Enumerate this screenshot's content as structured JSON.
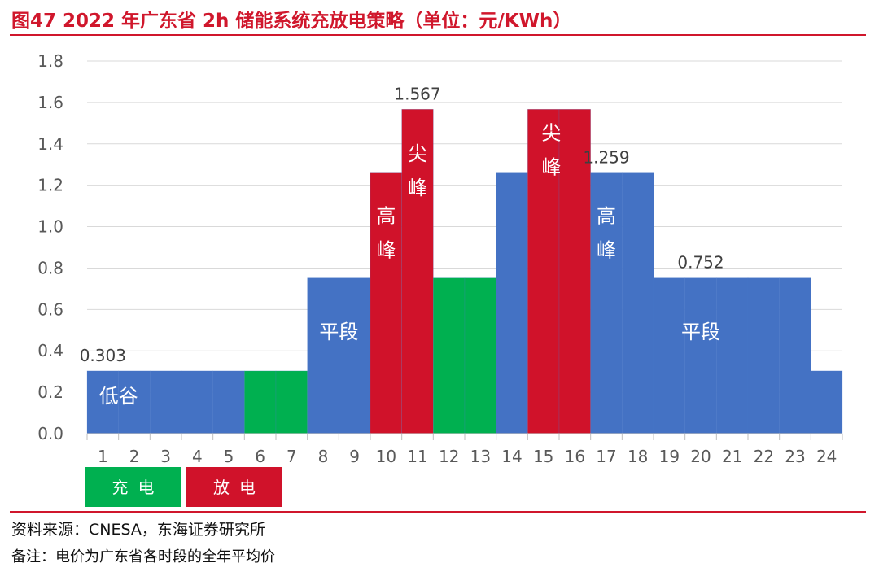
{
  "header": {
    "title": "图47  2022 年广东省 2h 储能系统充放电策略（单位：元/KWh）"
  },
  "footer": {
    "source": "资料来源：CNESA，东海证券研究所",
    "note": "备注：电价为广东省各时段的全年平均价"
  },
  "colors": {
    "brand_red": "#d0172c",
    "base": "#4472c4",
    "charge": "#00b050",
    "discharge": "#d0122a"
  },
  "chart_data": {
    "type": "bar",
    "title": "",
    "xlabel": "",
    "ylabel": "",
    "ylim": [
      0,
      1.8
    ],
    "y_ticks": [
      "0.0",
      "0.2",
      "0.4",
      "0.6",
      "0.8",
      "1.0",
      "1.2",
      "1.4",
      "1.6",
      "1.8"
    ],
    "categories": [
      "1",
      "2",
      "3",
      "4",
      "5",
      "6",
      "7",
      "8",
      "9",
      "10",
      "11",
      "12",
      "13",
      "14",
      "15",
      "16",
      "17",
      "18",
      "19",
      "20",
      "21",
      "22",
      "23",
      "24"
    ],
    "values": [
      0.303,
      0.303,
      0.303,
      0.303,
      0.303,
      0.303,
      0.303,
      0.752,
      0.752,
      1.259,
      1.567,
      0.752,
      0.752,
      1.259,
      1.567,
      1.567,
      1.259,
      1.259,
      0.752,
      0.752,
      0.752,
      0.752,
      0.752,
      0.303
    ],
    "status": [
      "base",
      "base",
      "base",
      "base",
      "base",
      "charge",
      "charge",
      "base",
      "base",
      "discharge",
      "discharge",
      "charge",
      "charge",
      "base",
      "discharge",
      "discharge",
      "base",
      "base",
      "base",
      "base",
      "base",
      "base",
      "base",
      "base"
    ],
    "grid": true,
    "data_labels": [
      {
        "text": "0.303",
        "hour": 1,
        "value": 0.303
      },
      {
        "text": "1.567",
        "hour": 11,
        "value": 1.567
      },
      {
        "text": "1.259",
        "hour": 17,
        "value": 1.259
      },
      {
        "text": "0.752",
        "hour": 20,
        "value": 0.752
      }
    ],
    "period_labels": [
      {
        "text": "低谷",
        "hour_from": 1,
        "hour_to": 2,
        "value": 0.15,
        "vertical": false
      },
      {
        "text": "平段",
        "hour_from": 8,
        "hour_to": 9,
        "value": 0.46,
        "vertical": false
      },
      {
        "text": "高峰",
        "hour_from": 10,
        "hour_to": 10,
        "value": 1.02,
        "vertical": true
      },
      {
        "text": "尖峰",
        "hour_from": 11,
        "hour_to": 11,
        "value": 1.32,
        "vertical": true
      },
      {
        "text": "尖峰",
        "hour_from": 15,
        "hour_to": 15.5,
        "value": 1.42,
        "vertical": true
      },
      {
        "text": "高峰",
        "hour_from": 17,
        "hour_to": 17,
        "value": 1.02,
        "vertical": true
      },
      {
        "text": "平段",
        "hour_from": 19,
        "hour_to": 21,
        "value": 0.46,
        "vertical": false
      }
    ],
    "legend": {
      "placement": "bottom-left",
      "items": [
        {
          "label": "充电",
          "status": "charge"
        },
        {
          "label": "放电",
          "status": "discharge"
        }
      ]
    }
  }
}
